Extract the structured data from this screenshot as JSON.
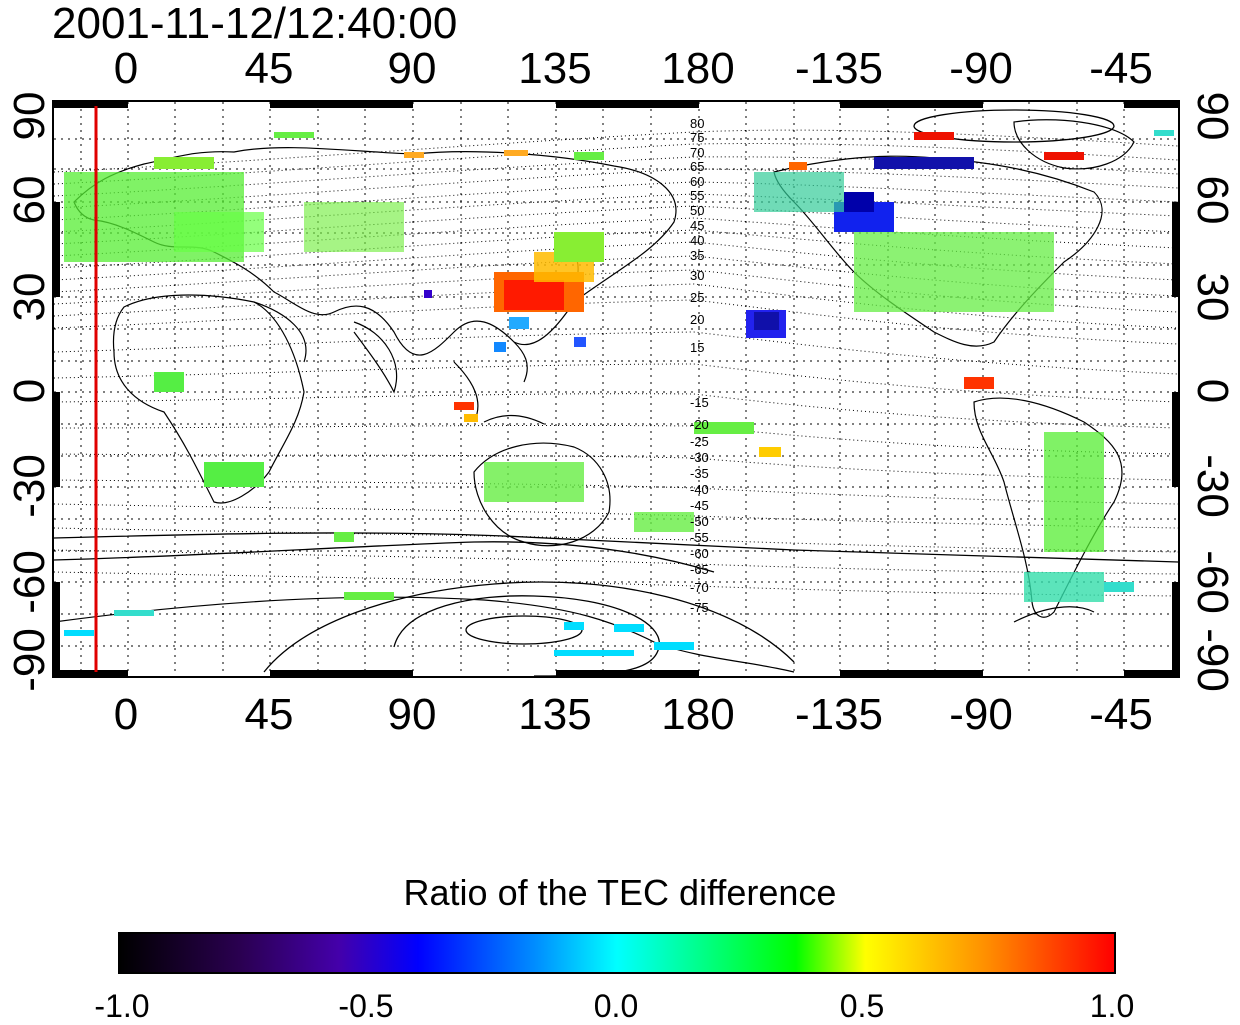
{
  "timestamp": "2001-11-12/12:40:00",
  "x_ticks": [
    "0",
    "45",
    "90",
    "135",
    "180",
    "-135",
    "-90",
    "-45"
  ],
  "y_ticks": [
    "90",
    "60",
    "30",
    "0",
    "-30",
    "-60",
    "-90"
  ],
  "contour_labels_north": [
    "80",
    "75",
    "70",
    "65",
    "60",
    "55",
    "50",
    "45",
    "40",
    "35",
    "30",
    "25",
    "20",
    "15"
  ],
  "contour_labels_south": [
    "-15",
    "-20",
    "-25",
    "-30",
    "-35",
    "-40",
    "-45",
    "-50",
    "-55",
    "-60",
    "-65",
    "-70",
    "-75"
  ],
  "colorbar": {
    "title": "Ratio of the TEC difference",
    "ticks": [
      "-1.0",
      "-0.5",
      "0.0",
      "0.5",
      "1.0"
    ],
    "range": [
      -1.0,
      1.0
    ]
  },
  "colors": {
    "marker_line": "#e00000",
    "contour": "#000000",
    "grid": "#000000"
  }
}
